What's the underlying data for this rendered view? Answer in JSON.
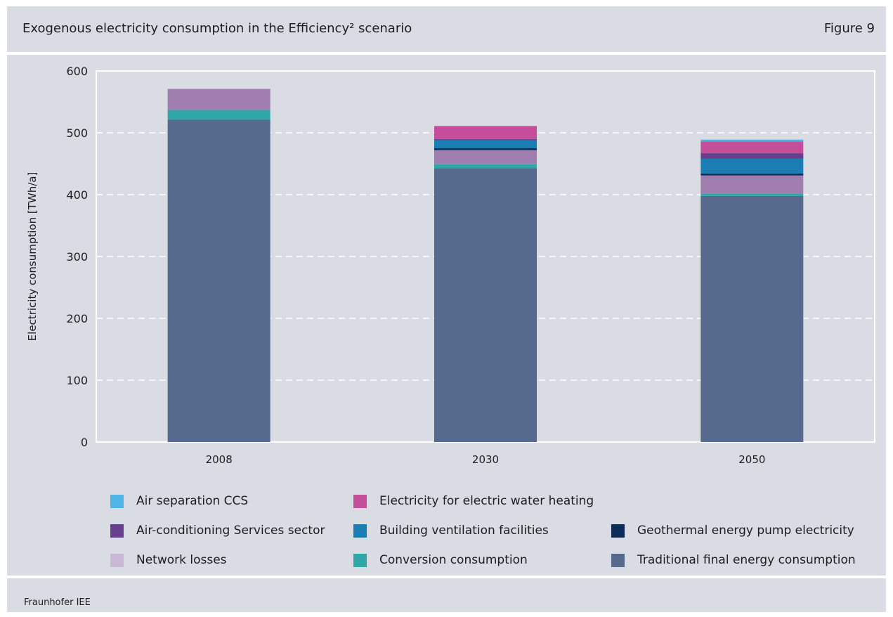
{
  "header": {
    "title": "Exogenous electricity consumption in the Efficiency² scenario",
    "figure_label": "Figure 9"
  },
  "footer": {
    "source": "Fraunhofer IEE"
  },
  "chart_data": {
    "type": "bar",
    "stacked": true,
    "title": "Exogenous electricity consumption in the Efficiency² scenario",
    "xlabel": "",
    "ylabel": "Electricity consumption [TWh/a]",
    "ylim": [
      0,
      600
    ],
    "yticks": [
      0,
      100,
      200,
      300,
      400,
      500,
      600
    ],
    "grid": "horizontal dashed",
    "legend_position": "bottom",
    "categories": [
      "2008",
      "2030",
      "2050"
    ],
    "series": [
      {
        "name": "Traditional final energy consumption",
        "color": "#566a8e",
        "values": [
          521,
          443,
          398
        ]
      },
      {
        "name": "Conversion consumption",
        "color": "#2fa6a8",
        "values": [
          16,
          6,
          4
        ]
      },
      {
        "name": "Network losses",
        "color": "#a07fb0",
        "values": [
          34,
          23,
          29
        ]
      },
      {
        "name": "Geothermal energy pump electricity",
        "color": "#0c2d5a",
        "values": [
          0,
          3,
          3
        ]
      },
      {
        "name": "Building ventilation facilities",
        "color": "#1a7db4",
        "values": [
          0,
          13,
          24
        ]
      },
      {
        "name": "Air-conditioning Services sector",
        "color": "#6a3e8e",
        "values": [
          0,
          2,
          9
        ]
      },
      {
        "name": "Electricity for electric water heating",
        "color": "#c44e9a",
        "values": [
          0,
          21,
          19
        ]
      },
      {
        "name": "Air separation CCS",
        "color": "#4db6e6",
        "values": [
          0,
          0,
          3
        ]
      }
    ]
  },
  "legend": {
    "items": [
      {
        "label": "Air separation CCS",
        "color": "#4db6e6"
      },
      {
        "label": "Electricity for electric water heating",
        "color": "#c44e9a"
      },
      {
        "label": "Air-conditioning Services sector",
        "color": "#6a3e8e"
      },
      {
        "label": "Building ventilation facilities",
        "color": "#1a7db4"
      },
      {
        "label": "Geothermal energy pump electricity",
        "color": "#0c2d5a"
      },
      {
        "label": "Network losses",
        "color": "#cbb8d6"
      },
      {
        "label": "Conversion consumption",
        "color": "#2fa6a8"
      },
      {
        "label": "Traditional final energy consumption",
        "color": "#566a8e"
      }
    ]
  }
}
